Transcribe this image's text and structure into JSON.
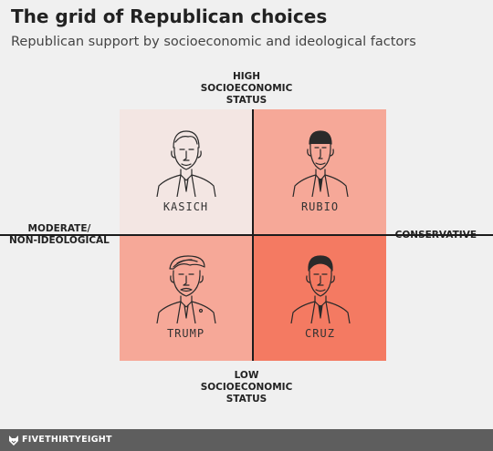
{
  "header": {
    "title": "The grid of Republican choices",
    "subtitle": "Republican support by socioeconomic and ideological factors"
  },
  "axes": {
    "top": [
      "HIGH",
      "SOCIOECONOMIC",
      "STATUS"
    ],
    "bottom": [
      "LOW",
      "SOCIOECONOMIC",
      "STATUS"
    ],
    "left": [
      "MODERATE/",
      "NON-IDEOLOGICAL"
    ],
    "right": [
      "CONSERVATIVE"
    ]
  },
  "quadrants": [
    {
      "name": "KASICH",
      "position": "top-left",
      "color": "#f3e6e3",
      "icon": "kasich-portrait-icon"
    },
    {
      "name": "RUBIO",
      "position": "top-right",
      "color": "#f6a898",
      "icon": "rubio-portrait-icon"
    },
    {
      "name": "TRUMP",
      "position": "bottom-left",
      "color": "#f6a898",
      "icon": "trump-portrait-icon"
    },
    {
      "name": "CRUZ",
      "position": "bottom-right",
      "color": "#f47a62",
      "icon": "cruz-portrait-icon"
    }
  ],
  "colors": {
    "background": "#f0f0f0",
    "grid_line": "#1c1c1c",
    "footer": "#5e5e5e"
  },
  "footer": {
    "brand": "FIVETHIRTYEIGHT",
    "icon": "fox-logo-icon"
  }
}
